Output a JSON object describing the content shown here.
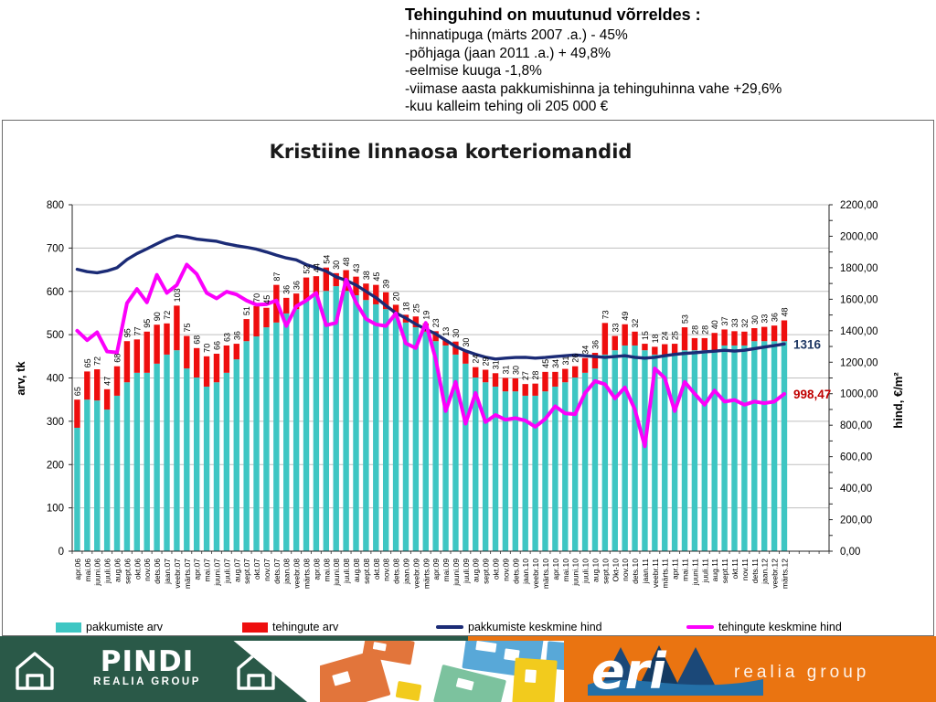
{
  "header": {
    "title": "Tehinguhind on muutunud võrreldes :",
    "lines": [
      "-hinnatipuga (märts 2007 .a.) - 45%",
      "-põhjaga (jaan 2011 .a.) + 49,8%",
      "-eelmise kuuga -1,8%",
      "-viimase aasta pakkumishinna ja tehinguhinna vahe +29,6%",
      "-kuu kalleim tehing oli 205 000 €"
    ]
  },
  "chart_data": {
    "type": "bar",
    "subtype": "stacked-bar-with-lines-combo",
    "title": "Kristiine linnaosa korteriomandid",
    "ylabel_left": "arv, tk",
    "ylabel_right": "hind, €/m²",
    "grid": true,
    "legend_position": "bottom",
    "left_axis": {
      "min": 0,
      "max": 800,
      "ticks": [
        0,
        100,
        200,
        300,
        400,
        500,
        600,
        700,
        800
      ]
    },
    "right_axis": {
      "min": 0,
      "max": 2200,
      "minor_tick_step": 100,
      "tick_values": [
        0,
        200,
        400,
        600,
        800,
        1000,
        1200,
        1400,
        1600,
        1800,
        2000,
        2200
      ],
      "tick_labels": [
        "0,00",
        "200,00",
        "400,00",
        "600,00",
        "800,00",
        "1000,00",
        "1200,00",
        "1400,00",
        "1600,00",
        "1800,00",
        "2000,00",
        "2200,00"
      ]
    },
    "categories": [
      "apr.06",
      "mai.06",
      "juuni.06",
      "juuli.06",
      "aug.06",
      "sept.06",
      "okt.06",
      "nov.06",
      "dets.06",
      "jaan.07",
      "veebr.07",
      "märts.07",
      "apr.07",
      "mai.07",
      "juuni.07",
      "juuli.07",
      "aug.07",
      "sept.07",
      "okt.07",
      "nov.07",
      "dets.07",
      "jaan.08",
      "veebr.08",
      "märts.08",
      "apr.08",
      "mai.08",
      "juuni.08",
      "juuli.08",
      "aug.08",
      "sept.08",
      "okt.08",
      "nov.08",
      "dets.08",
      "jaan.09",
      "veebr.09",
      "märts.09",
      "apr.09",
      "mai.09",
      "juuni.09",
      "juuli.09",
      "aug.09",
      "sept.09",
      "okt.09",
      "nov.09",
      "dets.09",
      "jaan.10",
      "veebr.10",
      "märts.10",
      "apr.10",
      "mai.10",
      "juuni.10",
      "juuli.10",
      "aug.10",
      "sept.10",
      "Okt-10",
      "nov.10",
      "dets.10",
      "jaan.11",
      "veebr.11",
      "märts.11",
      "apr.11",
      "mai.11",
      "juuni.11",
      "juuli.11",
      "aug.11",
      "sept.11",
      "okt.11",
      "nov.11",
      "dets.11",
      "jaan.12",
      "veebr.12",
      "märts.12"
    ],
    "series": [
      {
        "name": "pakkumiste arv",
        "type": "bar",
        "color": "#3ec6c3",
        "values": [
          285,
          350,
          348,
          327,
          359,
          390,
          412,
          412,
          433,
          454,
          464,
          422,
          401,
          380,
          390,
          412,
          443,
          485,
          496,
          517,
          528,
          549,
          559,
          580,
          591,
          601,
          612,
          601,
          591,
          580,
          570,
          559,
          549,
          528,
          517,
          507,
          485,
          475,
          454,
          433,
          401,
          390,
          380,
          369,
          369,
          359,
          359,
          369,
          380,
          390,
          401,
          412,
          422,
          454,
          464,
          475,
          475,
          464,
          454,
          454,
          454,
          464,
          464,
          464,
          464,
          475,
          475,
          475,
          485,
          485,
          485,
          485
        ]
      },
      {
        "name": "tehingute arv",
        "type": "bar",
        "color": "#ee0e0e",
        "show_labels": true,
        "values": [
          65,
          65,
          72,
          47,
          68,
          95,
          77,
          95,
          90,
          72,
          103,
          75,
          68,
          70,
          66,
          63,
          36,
          51,
          70,
          45,
          87,
          36,
          36,
          52,
          44,
          54,
          30,
          48,
          43,
          38,
          45,
          39,
          20,
          18,
          25,
          19,
          23,
          13,
          30,
          30,
          24,
          29,
          31,
          31,
          30,
          27,
          28,
          45,
          34,
          31,
          26,
          34,
          36,
          73,
          33,
          49,
          32,
          15,
          18,
          24,
          25,
          53,
          28,
          28,
          40,
          37,
          33,
          32,
          30,
          33,
          36,
          48
        ]
      },
      {
        "name": "pakkumiste keskmine hind",
        "type": "line",
        "axis": "right",
        "color": "#1b2b76",
        "values": [
          1790,
          1775,
          1768,
          1780,
          1800,
          1852,
          1890,
          1920,
          1952,
          1982,
          2003,
          1995,
          1982,
          1975,
          1968,
          1952,
          1940,
          1930,
          1918,
          1900,
          1880,
          1862,
          1850,
          1820,
          1800,
          1778,
          1742,
          1720,
          1690,
          1650,
          1610,
          1560,
          1512,
          1480,
          1442,
          1410,
          1380,
          1340,
          1300,
          1272,
          1250,
          1232,
          1220,
          1226,
          1230,
          1231,
          1226,
          1230,
          1236,
          1241,
          1246,
          1241,
          1236,
          1231,
          1236,
          1241,
          1231,
          1226,
          1231,
          1241,
          1250,
          1256,
          1260,
          1266,
          1270,
          1276,
          1271,
          1276,
          1286,
          1296,
          1306,
          1316
        ]
      },
      {
        "name": "tehingute keskmine hind",
        "type": "line",
        "axis": "right",
        "color": "#fb00fb",
        "values": [
          1400,
          1340,
          1390,
          1268,
          1262,
          1575,
          1665,
          1580,
          1755,
          1640,
          1690,
          1820,
          1760,
          1640,
          1605,
          1648,
          1630,
          1592,
          1565,
          1568,
          1592,
          1430,
          1555,
          1592,
          1640,
          1435,
          1450,
          1725,
          1580,
          1475,
          1440,
          1430,
          1510,
          1320,
          1290,
          1450,
          1220,
          890,
          1075,
          810,
          1005,
          820,
          865,
          835,
          845,
          830,
          790,
          840,
          920,
          875,
          870,
          1005,
          1080,
          1060,
          970,
          1040,
          900,
          666,
          1160,
          1100,
          890,
          1075,
          1000,
          930,
          1020,
          950,
          960,
          930,
          950,
          940,
          950,
          998.47
        ]
      }
    ],
    "annotations": [
      {
        "text": "1316",
        "color": "#1f3864",
        "series": 2
      },
      {
        "text": "998,47",
        "color": "#c00000",
        "series": 3
      }
    ]
  },
  "footer": {
    "pindi": {
      "title": "PINDI",
      "subtitle": "REALIA GROUP"
    },
    "eri": {
      "logo_text": "eri",
      "subtitle": "realia group"
    },
    "colors": {
      "green": "#2a5948",
      "orange": "#ea7411"
    }
  }
}
